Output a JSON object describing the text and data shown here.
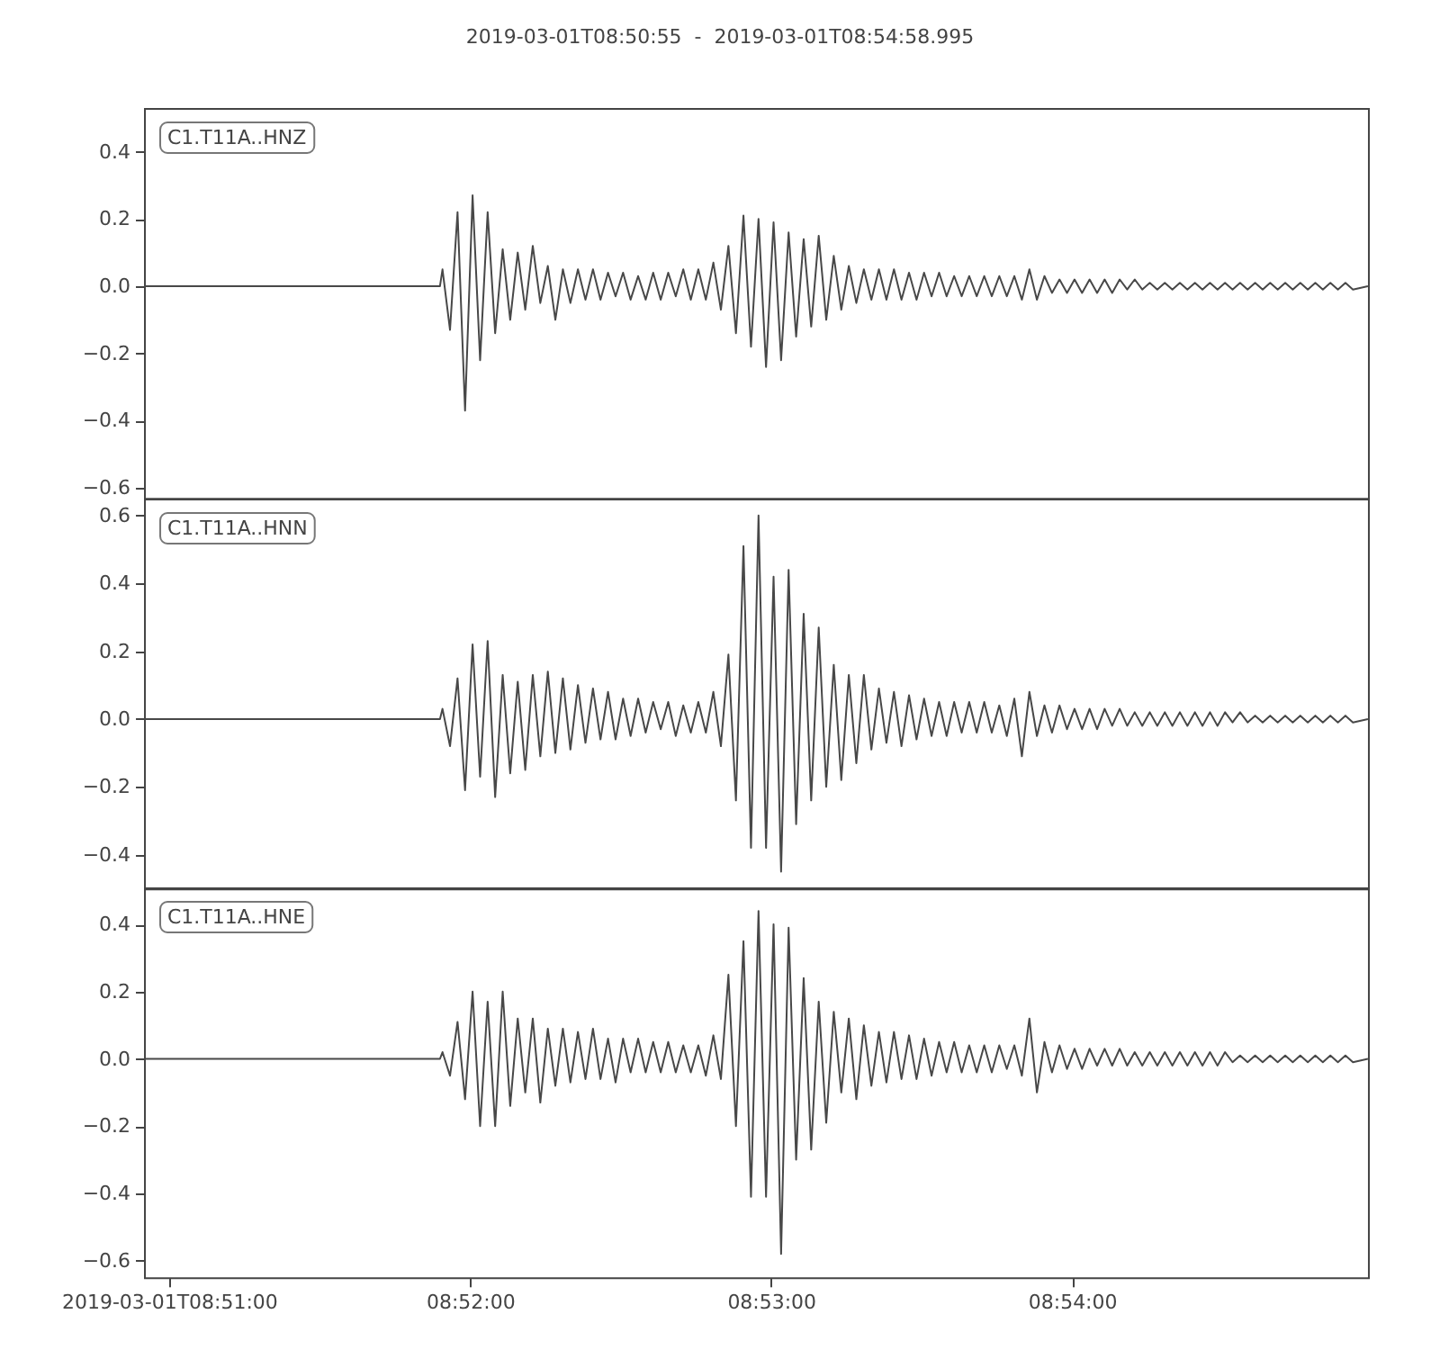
{
  "chart_data": [
    {
      "type": "line",
      "title": "2019-03-01T08:50:55  -  2019-03-01T08:54:58.995",
      "annotations": [
        "C1.T11A..HNZ"
      ],
      "tick_labels": "y",
      "color": "#484848",
      "xlim": [
        "2019-03-01T08:50:55",
        "2019-03-01T08:54:58.995"
      ],
      "ylim": [
        -0.63,
        0.53
      ],
      "yticks": [
        {
          "value": -0.6,
          "label": "−0.6"
        },
        {
          "value": -0.4,
          "label": "−0.4"
        },
        {
          "value": -0.2,
          "label": "−0.2"
        },
        {
          "value": 0,
          "label": "0.0"
        },
        0.2,
        0.4
      ],
      "x": [
        "2019-03-01T08:50:55",
        "2019-03-01T08:51:54",
        "2019-03-01T08:51:54.5",
        "2019-03-01T08:51:56",
        "2019-03-01T08:51:57.5",
        "2019-03-01T08:51:59",
        "2019-03-01T08:52:00.5",
        "2019-03-01T08:52:02",
        "2019-03-01T08:52:03.5",
        "2019-03-01T08:52:05",
        "2019-03-01T08:52:06.5",
        "2019-03-01T08:52:08",
        "2019-03-01T08:52:09.5",
        "2019-03-01T08:52:11",
        "2019-03-01T08:52:12.5",
        "2019-03-01T08:52:14",
        "2019-03-01T08:52:15.5",
        "2019-03-01T08:52:17",
        "2019-03-01T08:52:18.5",
        "2019-03-01T08:52:20",
        "2019-03-01T08:52:21.5",
        "2019-03-01T08:52:23",
        "2019-03-01T08:52:24.5",
        "2019-03-01T08:52:26",
        "2019-03-01T08:52:27.5",
        "2019-03-01T08:52:29",
        "2019-03-01T08:52:30.5",
        "2019-03-01T08:52:32",
        "2019-03-01T08:52:33.5",
        "2019-03-01T08:52:35",
        "2019-03-01T08:52:36.5",
        "2019-03-01T08:52:38",
        "2019-03-01T08:52:39.5",
        "2019-03-01T08:52:41",
        "2019-03-01T08:52:42.5",
        "2019-03-01T08:52:44",
        "2019-03-01T08:52:45.5",
        "2019-03-01T08:52:47",
        "2019-03-01T08:52:48.5",
        "2019-03-01T08:52:50",
        "2019-03-01T08:52:51.5",
        "2019-03-01T08:52:53",
        "2019-03-01T08:52:54.5",
        "2019-03-01T08:52:56",
        "2019-03-01T08:52:57.5",
        "2019-03-01T08:52:59",
        "2019-03-01T08:53:00.5",
        "2019-03-01T08:53:02",
        "2019-03-01T08:53:03.5",
        "2019-03-01T08:53:05",
        "2019-03-01T08:53:06.5",
        "2019-03-01T08:53:08",
        "2019-03-01T08:53:09.5",
        "2019-03-01T08:53:11",
        "2019-03-01T08:53:12.5",
        "2019-03-01T08:53:14",
        "2019-03-01T08:53:15.5",
        "2019-03-01T08:53:17",
        "2019-03-01T08:53:18.5",
        "2019-03-01T08:53:20",
        "2019-03-01T08:53:21.5",
        "2019-03-01T08:53:23",
        "2019-03-01T08:53:24.5",
        "2019-03-01T08:53:26",
        "2019-03-01T08:53:27.5",
        "2019-03-01T08:53:29",
        "2019-03-01T08:53:30.5",
        "2019-03-01T08:53:32",
        "2019-03-01T08:53:33.5",
        "2019-03-01T08:53:35",
        "2019-03-01T08:53:36.5",
        "2019-03-01T08:53:38",
        "2019-03-01T08:53:39.5",
        "2019-03-01T08:53:41",
        "2019-03-01T08:53:42.5",
        "2019-03-01T08:53:44",
        "2019-03-01T08:53:45.5",
        "2019-03-01T08:53:47",
        "2019-03-01T08:53:48.5",
        "2019-03-01T08:53:50",
        "2019-03-01T08:53:51.5",
        "2019-03-01T08:53:53",
        "2019-03-01T08:53:54.5",
        "2019-03-01T08:53:56",
        "2019-03-01T08:53:57.5",
        "2019-03-01T08:53:59",
        "2019-03-01T08:54:00.5",
        "2019-03-01T08:54:02",
        "2019-03-01T08:54:03.5",
        "2019-03-01T08:54:05",
        "2019-03-01T08:54:06.5",
        "2019-03-01T08:54:08",
        "2019-03-01T08:54:09.5",
        "2019-03-01T08:54:11",
        "2019-03-01T08:54:12.5",
        "2019-03-01T08:54:14",
        "2019-03-01T08:54:15.5",
        "2019-03-01T08:54:17",
        "2019-03-01T08:54:18.5",
        "2019-03-01T08:54:20",
        "2019-03-01T08:54:21.5",
        "2019-03-01T08:54:23",
        "2019-03-01T08:54:24.5",
        "2019-03-01T08:54:26",
        "2019-03-01T08:54:27.5",
        "2019-03-01T08:54:29",
        "2019-03-01T08:54:30.5",
        "2019-03-01T08:54:32",
        "2019-03-01T08:54:33.5",
        "2019-03-01T08:54:35",
        "2019-03-01T08:54:36.5",
        "2019-03-01T08:54:38",
        "2019-03-01T08:54:39.5",
        "2019-03-01T08:54:41",
        "2019-03-01T08:54:42.5",
        "2019-03-01T08:54:44",
        "2019-03-01T08:54:45.5",
        "2019-03-01T08:54:47",
        "2019-03-01T08:54:48.5",
        "2019-03-01T08:54:50",
        "2019-03-01T08:54:51.5",
        "2019-03-01T08:54:53",
        "2019-03-01T08:54:54.5",
        "2019-03-01T08:54:56",
        "2019-03-01T08:54:58.995"
      ],
      "values": [
        0,
        0,
        0.05,
        -0.13,
        0.22,
        -0.37,
        0.27,
        -0.22,
        0.22,
        -0.14,
        0.11,
        -0.1,
        0.1,
        -0.07,
        0.12,
        -0.05,
        0.06,
        -0.1,
        0.05,
        -0.05,
        0.05,
        -0.04,
        0.05,
        -0.04,
        0.04,
        -0.03,
        0.04,
        -0.04,
        0.03,
        -0.04,
        0.04,
        -0.04,
        0.04,
        -0.03,
        0.05,
        -0.04,
        0.05,
        -0.04,
        0.07,
        -0.07,
        0.12,
        -0.14,
        0.21,
        -0.18,
        0.2,
        -0.24,
        0.19,
        -0.22,
        0.16,
        -0.15,
        0.14,
        -0.12,
        0.15,
        -0.1,
        0.09,
        -0.07,
        0.06,
        -0.05,
        0.05,
        -0.04,
        0.05,
        -0.04,
        0.05,
        -0.04,
        0.04,
        -0.04,
        0.04,
        -0.03,
        0.04,
        -0.03,
        0.03,
        -0.03,
        0.03,
        -0.03,
        0.03,
        -0.03,
        0.03,
        -0.03,
        0.03,
        -0.04,
        0.05,
        -0.04,
        0.03,
        -0.02,
        0.02,
        -0.02,
        0.02,
        -0.02,
        0.02,
        -0.02,
        0.02,
        -0.02,
        0.02,
        -0.01,
        0.02,
        -0.01,
        0.01,
        -0.01,
        0.01,
        -0.01,
        0.01,
        -0.01,
        0.01,
        -0.01,
        0.01,
        -0.01,
        0.01,
        -0.01,
        0.01,
        -0.01,
        0.01,
        -0.01,
        0.01,
        -0.01,
        0.01,
        -0.01,
        0.01,
        -0.01,
        0.01,
        -0.01,
        0.01,
        -0.01,
        0.01,
        -0.01,
        0
      ]
    },
    {
      "type": "line",
      "annotations": [
        "C1.T11A..HNN"
      ],
      "tick_labels": "y",
      "color": "#484848",
      "xlim": [
        "2019-03-01T08:50:55",
        "2019-03-01T08:54:58.995"
      ],
      "ylim": [
        -0.5,
        0.65
      ],
      "yticks": [
        {
          "value": -0.4,
          "label": "−0.4"
        },
        {
          "value": -0.2,
          "label": "−0.2"
        },
        {
          "value": 0,
          "label": "0.0"
        },
        0.2,
        0.4,
        0.6
      ],
      "x": [
        "2019-03-01T08:50:55",
        "2019-03-01T08:51:54",
        "2019-03-01T08:51:54.5",
        "2019-03-01T08:51:56",
        "2019-03-01T08:51:57.5",
        "2019-03-01T08:51:59",
        "2019-03-01T08:52:00.5",
        "2019-03-01T08:52:02",
        "2019-03-01T08:52:03.5",
        "2019-03-01T08:52:05",
        "2019-03-01T08:52:06.5",
        "2019-03-01T08:52:08",
        "2019-03-01T08:52:09.5",
        "2019-03-01T08:52:11",
        "2019-03-01T08:52:12.5",
        "2019-03-01T08:52:14",
        "2019-03-01T08:52:15.5",
        "2019-03-01T08:52:17",
        "2019-03-01T08:52:18.5",
        "2019-03-01T08:52:20",
        "2019-03-01T08:52:21.5",
        "2019-03-01T08:52:23",
        "2019-03-01T08:52:24.5",
        "2019-03-01T08:52:26",
        "2019-03-01T08:52:27.5",
        "2019-03-01T08:52:29",
        "2019-03-01T08:52:30.5",
        "2019-03-01T08:52:32",
        "2019-03-01T08:52:33.5",
        "2019-03-01T08:52:35",
        "2019-03-01T08:52:36.5",
        "2019-03-01T08:52:38",
        "2019-03-01T08:52:39.5",
        "2019-03-01T08:52:41",
        "2019-03-01T08:52:42.5",
        "2019-03-01T08:52:44",
        "2019-03-01T08:52:45.5",
        "2019-03-01T08:52:47",
        "2019-03-01T08:52:48.5",
        "2019-03-01T08:52:50",
        "2019-03-01T08:52:51.5",
        "2019-03-01T08:52:53",
        "2019-03-01T08:52:54.5",
        "2019-03-01T08:52:56",
        "2019-03-01T08:52:57.5",
        "2019-03-01T08:52:59",
        "2019-03-01T08:53:00.5",
        "2019-03-01T08:53:02",
        "2019-03-01T08:53:03.5",
        "2019-03-01T08:53:05",
        "2019-03-01T08:53:06.5",
        "2019-03-01T08:53:08",
        "2019-03-01T08:53:09.5",
        "2019-03-01T08:53:11",
        "2019-03-01T08:53:12.5",
        "2019-03-01T08:53:14",
        "2019-03-01T08:53:15.5",
        "2019-03-01T08:53:17",
        "2019-03-01T08:53:18.5",
        "2019-03-01T08:53:20",
        "2019-03-01T08:53:21.5",
        "2019-03-01T08:53:23",
        "2019-03-01T08:53:24.5",
        "2019-03-01T08:53:26",
        "2019-03-01T08:53:27.5",
        "2019-03-01T08:53:29",
        "2019-03-01T08:53:30.5",
        "2019-03-01T08:53:32",
        "2019-03-01T08:53:33.5",
        "2019-03-01T08:53:35",
        "2019-03-01T08:53:36.5",
        "2019-03-01T08:53:38",
        "2019-03-01T08:53:39.5",
        "2019-03-01T08:53:41",
        "2019-03-01T08:53:42.5",
        "2019-03-01T08:53:44",
        "2019-03-01T08:53:45.5",
        "2019-03-01T08:53:47",
        "2019-03-01T08:53:48.5",
        "2019-03-01T08:53:50",
        "2019-03-01T08:53:51.5",
        "2019-03-01T08:53:53",
        "2019-03-01T08:53:54.5",
        "2019-03-01T08:53:56",
        "2019-03-01T08:53:57.5",
        "2019-03-01T08:53:59",
        "2019-03-01T08:54:00.5",
        "2019-03-01T08:54:02",
        "2019-03-01T08:54:03.5",
        "2019-03-01T08:54:05",
        "2019-03-01T08:54:06.5",
        "2019-03-01T08:54:08",
        "2019-03-01T08:54:09.5",
        "2019-03-01T08:54:11",
        "2019-03-01T08:54:12.5",
        "2019-03-01T08:54:14",
        "2019-03-01T08:54:15.5",
        "2019-03-01T08:54:17",
        "2019-03-01T08:54:18.5",
        "2019-03-01T08:54:20",
        "2019-03-01T08:54:21.5",
        "2019-03-01T08:54:23",
        "2019-03-01T08:54:24.5",
        "2019-03-01T08:54:26",
        "2019-03-01T08:54:27.5",
        "2019-03-01T08:54:29",
        "2019-03-01T08:54:30.5",
        "2019-03-01T08:54:32",
        "2019-03-01T08:54:33.5",
        "2019-03-01T08:54:35",
        "2019-03-01T08:54:36.5",
        "2019-03-01T08:54:38",
        "2019-03-01T08:54:39.5",
        "2019-03-01T08:54:41",
        "2019-03-01T08:54:42.5",
        "2019-03-01T08:54:44",
        "2019-03-01T08:54:45.5",
        "2019-03-01T08:54:47",
        "2019-03-01T08:54:48.5",
        "2019-03-01T08:54:50",
        "2019-03-01T08:54:51.5",
        "2019-03-01T08:54:53",
        "2019-03-01T08:54:54.5",
        "2019-03-01T08:54:56",
        "2019-03-01T08:54:58.995"
      ],
      "values": [
        0,
        0,
        0.03,
        -0.08,
        0.12,
        -0.21,
        0.22,
        -0.17,
        0.23,
        -0.23,
        0.13,
        -0.16,
        0.11,
        -0.15,
        0.13,
        -0.11,
        0.14,
        -0.1,
        0.12,
        -0.09,
        0.1,
        -0.07,
        0.09,
        -0.06,
        0.08,
        -0.06,
        0.06,
        -0.05,
        0.06,
        -0.04,
        0.05,
        -0.03,
        0.05,
        -0.05,
        0.04,
        -0.04,
        0.05,
        -0.04,
        0.08,
        -0.08,
        0.19,
        -0.24,
        0.51,
        -0.38,
        0.6,
        -0.38,
        0.42,
        -0.45,
        0.44,
        -0.31,
        0.31,
        -0.24,
        0.27,
        -0.2,
        0.16,
        -0.18,
        0.13,
        -0.13,
        0.13,
        -0.09,
        0.09,
        -0.07,
        0.08,
        -0.08,
        0.07,
        -0.06,
        0.06,
        -0.05,
        0.05,
        -0.05,
        0.05,
        -0.04,
        0.05,
        -0.04,
        0.05,
        -0.04,
        0.04,
        -0.05,
        0.06,
        -0.11,
        0.08,
        -0.05,
        0.04,
        -0.04,
        0.04,
        -0.03,
        0.03,
        -0.03,
        0.03,
        -0.03,
        0.03,
        -0.02,
        0.03,
        -0.02,
        0.02,
        -0.02,
        0.02,
        -0.02,
        0.02,
        -0.02,
        0.02,
        -0.02,
        0.02,
        -0.02,
        0.02,
        -0.02,
        0.02,
        -0.01,
        0.02,
        -0.01,
        0.01,
        -0.01,
        0.01,
        -0.01,
        0.01,
        -0.01,
        0.01,
        -0.01,
        0.01,
        -0.01,
        0.01,
        -0.01,
        0.01,
        -0.01,
        0
      ]
    },
    {
      "type": "line",
      "annotations": [
        "C1.T11A..HNE"
      ],
      "color": "#484848",
      "xlim": [
        "2019-03-01T08:50:55",
        "2019-03-01T08:54:58.995"
      ],
      "xticks": [
        "2019-03-01T08:51:00",
        {
          "value": "2019-03-01T08:52:00",
          "label": "08:52:00"
        },
        {
          "value": "2019-03-01T08:53:00",
          "label": "08:53:00"
        },
        {
          "value": "2019-03-01T08:54:00",
          "label": "08:54:00"
        }
      ],
      "ylim": [
        -0.65,
        0.51
      ],
      "yticks": [
        {
          "value": -0.6,
          "label": "−0.6"
        },
        {
          "value": -0.4,
          "label": "−0.4"
        },
        {
          "value": -0.2,
          "label": "−0.2"
        },
        {
          "value": 0,
          "label": "0.0"
        },
        0.2,
        0.4
      ],
      "x": [
        "2019-03-01T08:50:55",
        "2019-03-01T08:51:54",
        "2019-03-01T08:51:54.5",
        "2019-03-01T08:51:56",
        "2019-03-01T08:51:57.5",
        "2019-03-01T08:51:59",
        "2019-03-01T08:52:00.5",
        "2019-03-01T08:52:02",
        "2019-03-01T08:52:03.5",
        "2019-03-01T08:52:05",
        "2019-03-01T08:52:06.5",
        "2019-03-01T08:52:08",
        "2019-03-01T08:52:09.5",
        "2019-03-01T08:52:11",
        "2019-03-01T08:52:12.5",
        "2019-03-01T08:52:14",
        "2019-03-01T08:52:15.5",
        "2019-03-01T08:52:17",
        "2019-03-01T08:52:18.5",
        "2019-03-01T08:52:20",
        "2019-03-01T08:52:21.5",
        "2019-03-01T08:52:23",
        "2019-03-01T08:52:24.5",
        "2019-03-01T08:52:26",
        "2019-03-01T08:52:27.5",
        "2019-03-01T08:52:29",
        "2019-03-01T08:52:30.5",
        "2019-03-01T08:52:32",
        "2019-03-01T08:52:33.5",
        "2019-03-01T08:52:35",
        "2019-03-01T08:52:36.5",
        "2019-03-01T08:52:38",
        "2019-03-01T08:52:39.5",
        "2019-03-01T08:52:41",
        "2019-03-01T08:52:42.5",
        "2019-03-01T08:52:44",
        "2019-03-01T08:52:45.5",
        "2019-03-01T08:52:47",
        "2019-03-01T08:52:48.5",
        "2019-03-01T08:52:50",
        "2019-03-01T08:52:51.5",
        "2019-03-01T08:52:53",
        "2019-03-01T08:52:54.5",
        "2019-03-01T08:52:56",
        "2019-03-01T08:52:57.5",
        "2019-03-01T08:52:59",
        "2019-03-01T08:53:00.5",
        "2019-03-01T08:53:02",
        "2019-03-01T08:53:03.5",
        "2019-03-01T08:53:05",
        "2019-03-01T08:53:06.5",
        "2019-03-01T08:53:08",
        "2019-03-01T08:53:09.5",
        "2019-03-01T08:53:11",
        "2019-03-01T08:53:12.5",
        "2019-03-01T08:53:14",
        "2019-03-01T08:53:15.5",
        "2019-03-01T08:53:17",
        "2019-03-01T08:53:18.5",
        "2019-03-01T08:53:20",
        "2019-03-01T08:53:21.5",
        "2019-03-01T08:53:23",
        "2019-03-01T08:53:24.5",
        "2019-03-01T08:53:26",
        "2019-03-01T08:53:27.5",
        "2019-03-01T08:53:29",
        "2019-03-01T08:53:30.5",
        "2019-03-01T08:53:32",
        "2019-03-01T08:53:33.5",
        "2019-03-01T08:53:35",
        "2019-03-01T08:53:36.5",
        "2019-03-01T08:53:38",
        "2019-03-01T08:53:39.5",
        "2019-03-01T08:53:41",
        "2019-03-01T08:53:42.5",
        "2019-03-01T08:53:44",
        "2019-03-01T08:53:45.5",
        "2019-03-01T08:53:47",
        "2019-03-01T08:53:48.5",
        "2019-03-01T08:53:50",
        "2019-03-01T08:53:51.5",
        "2019-03-01T08:53:53",
        "2019-03-01T08:53:54.5",
        "2019-03-01T08:53:56",
        "2019-03-01T08:53:57.5",
        "2019-03-01T08:53:59",
        "2019-03-01T08:54:00.5",
        "2019-03-01T08:54:02",
        "2019-03-01T08:54:03.5",
        "2019-03-01T08:54:05",
        "2019-03-01T08:54:06.5",
        "2019-03-01T08:54:08",
        "2019-03-01T08:54:09.5",
        "2019-03-01T08:54:11",
        "2019-03-01T08:54:12.5",
        "2019-03-01T08:54:14",
        "2019-03-01T08:54:15.5",
        "2019-03-01T08:54:17",
        "2019-03-01T08:54:18.5",
        "2019-03-01T08:54:20",
        "2019-03-01T08:54:21.5",
        "2019-03-01T08:54:23",
        "2019-03-01T08:54:24.5",
        "2019-03-01T08:54:26",
        "2019-03-01T08:54:27.5",
        "2019-03-01T08:54:29",
        "2019-03-01T08:54:30.5",
        "2019-03-01T08:54:32",
        "2019-03-01T08:54:33.5",
        "2019-03-01T08:54:35",
        "2019-03-01T08:54:36.5",
        "2019-03-01T08:54:38",
        "2019-03-01T08:54:39.5",
        "2019-03-01T08:54:41",
        "2019-03-01T08:54:42.5",
        "2019-03-01T08:54:44",
        "2019-03-01T08:54:45.5",
        "2019-03-01T08:54:47",
        "2019-03-01T08:54:48.5",
        "2019-03-01T08:54:50",
        "2019-03-01T08:54:51.5",
        "2019-03-01T08:54:53",
        "2019-03-01T08:54:54.5",
        "2019-03-01T08:54:56",
        "2019-03-01T08:54:58.995"
      ],
      "values": [
        0,
        0,
        0.02,
        -0.05,
        0.11,
        -0.12,
        0.2,
        -0.2,
        0.17,
        -0.2,
        0.2,
        -0.14,
        0.12,
        -0.1,
        0.12,
        -0.13,
        0.09,
        -0.08,
        0.09,
        -0.07,
        0.08,
        -0.06,
        0.09,
        -0.06,
        0.06,
        -0.07,
        0.06,
        -0.04,
        0.06,
        -0.04,
        0.05,
        -0.04,
        0.05,
        -0.04,
        0.04,
        -0.04,
        0.04,
        -0.05,
        0.07,
        -0.06,
        0.25,
        -0.2,
        0.35,
        -0.41,
        0.44,
        -0.41,
        0.4,
        -0.58,
        0.39,
        -0.3,
        0.24,
        -0.27,
        0.17,
        -0.19,
        0.14,
        -0.1,
        0.12,
        -0.12,
        0.1,
        -0.08,
        0.08,
        -0.07,
        0.08,
        -0.06,
        0.07,
        -0.06,
        0.06,
        -0.05,
        0.05,
        -0.04,
        0.05,
        -0.04,
        0.04,
        -0.04,
        0.04,
        -0.04,
        0.04,
        -0.03,
        0.04,
        -0.05,
        0.12,
        -0.1,
        0.05,
        -0.04,
        0.04,
        -0.03,
        0.03,
        -0.03,
        0.03,
        -0.02,
        0.03,
        -0.02,
        0.03,
        -0.02,
        0.02,
        -0.02,
        0.02,
        -0.02,
        0.02,
        -0.02,
        0.02,
        -0.02,
        0.02,
        -0.02,
        0.02,
        -0.02,
        0.02,
        -0.01,
        0.01,
        -0.01,
        0.01,
        -0.01,
        0.01,
        -0.01,
        0.01,
        -0.01,
        0.01,
        -0.01,
        0.01,
        -0.01,
        0.01,
        -0.01,
        0.01,
        -0.01,
        0
      ]
    }
  ]
}
